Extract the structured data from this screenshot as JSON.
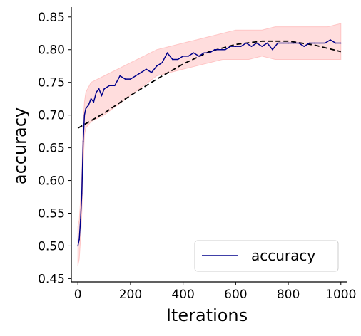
{
  "chart_data": {
    "type": "line",
    "title": "",
    "xlabel": "Iterations",
    "ylabel": "accuracy",
    "xlim": [
      -25,
      1025
    ],
    "ylim": [
      0.445,
      0.865
    ],
    "xticks": [
      0,
      200,
      400,
      600,
      800,
      1000
    ],
    "xtick_labels": [
      "0",
      "200",
      "400",
      "600",
      "800",
      "1000"
    ],
    "yticks": [
      0.45,
      0.5,
      0.55,
      0.6,
      0.65,
      0.7,
      0.75,
      0.8,
      0.85
    ],
    "ytick_labels": [
      "0.45",
      "0.50",
      "0.55",
      "0.60",
      "0.65",
      "0.70",
      "0.75",
      "0.80",
      "0.85"
    ],
    "grid": false,
    "legend": {
      "position": "lower-right",
      "entries": [
        "accuracy"
      ]
    },
    "series": [
      {
        "name": "accuracy",
        "kind": "line",
        "color": "#00008b",
        "x": [
          0,
          5,
          10,
          15,
          20,
          25,
          30,
          40,
          50,
          60,
          70,
          80,
          90,
          100,
          120,
          140,
          160,
          180,
          200,
          220,
          240,
          260,
          280,
          300,
          320,
          340,
          360,
          380,
          400,
          420,
          440,
          460,
          480,
          500,
          520,
          540,
          560,
          580,
          600,
          620,
          640,
          660,
          680,
          700,
          720,
          740,
          760,
          780,
          800,
          820,
          840,
          860,
          880,
          900,
          920,
          940,
          960,
          980,
          1000
        ],
        "y": [
          0.5,
          0.51,
          0.54,
          0.58,
          0.66,
          0.7,
          0.71,
          0.715,
          0.725,
          0.72,
          0.735,
          0.74,
          0.73,
          0.74,
          0.745,
          0.745,
          0.76,
          0.755,
          0.755,
          0.76,
          0.765,
          0.77,
          0.765,
          0.775,
          0.78,
          0.795,
          0.785,
          0.785,
          0.79,
          0.79,
          0.795,
          0.79,
          0.795,
          0.795,
          0.8,
          0.8,
          0.8,
          0.805,
          0.805,
          0.805,
          0.81,
          0.805,
          0.81,
          0.805,
          0.81,
          0.8,
          0.81,
          0.81,
          0.81,
          0.81,
          0.81,
          0.805,
          0.81,
          0.81,
          0.81,
          0.81,
          0.815,
          0.81,
          0.81
        ]
      },
      {
        "kind": "band",
        "color": "#ff9f9f",
        "x": [
          0,
          5,
          10,
          15,
          20,
          25,
          30,
          50,
          100,
          150,
          200,
          250,
          300,
          350,
          400,
          450,
          500,
          550,
          600,
          650,
          700,
          750,
          800,
          850,
          900,
          950,
          1000
        ],
        "lower": [
          0.47,
          0.48,
          0.51,
          0.55,
          0.62,
          0.67,
          0.68,
          0.69,
          0.7,
          0.715,
          0.73,
          0.745,
          0.76,
          0.765,
          0.77,
          0.775,
          0.78,
          0.785,
          0.785,
          0.785,
          0.79,
          0.785,
          0.785,
          0.785,
          0.785,
          0.785,
          0.785
        ],
        "upper": [
          0.53,
          0.54,
          0.57,
          0.61,
          0.69,
          0.72,
          0.735,
          0.75,
          0.76,
          0.77,
          0.78,
          0.79,
          0.8,
          0.805,
          0.81,
          0.815,
          0.82,
          0.825,
          0.83,
          0.83,
          0.83,
          0.835,
          0.835,
          0.835,
          0.835,
          0.835,
          0.84
        ]
      },
      {
        "kind": "trend",
        "color": "#000000",
        "dash": "dashed",
        "x": [
          0,
          100,
          200,
          300,
          400,
          500,
          600,
          700,
          800,
          900,
          1000
        ],
        "y": [
          0.68,
          0.703,
          0.73,
          0.755,
          0.778,
          0.797,
          0.808,
          0.813,
          0.813,
          0.807,
          0.797
        ]
      }
    ]
  }
}
